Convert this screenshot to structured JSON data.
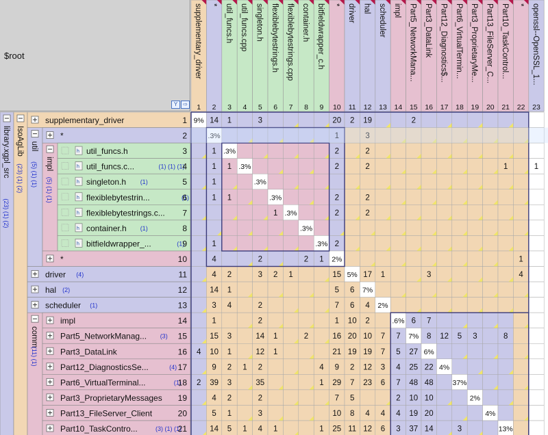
{
  "root_label": "$root",
  "icons": {
    "filter": "filter-icon",
    "export": "export-icon",
    "expand": "expand-plus-icon",
    "collapse": "collapse-minus-icon",
    "file": "header-file-icon"
  },
  "groups": [
    {
      "id": "g-library",
      "label": "library.xgpl_src",
      "badges": "(23) (1) (2)",
      "color": "#c9c9e9",
      "expanded": true
    },
    {
      "id": "g-isoaglib",
      "label": "IsoAgLib",
      "badges": "(23) (1) (2)",
      "color": "#f2d7b4",
      "expanded": true
    },
    {
      "id": "g-util",
      "label": "util",
      "badges": "(5) (1) (1)",
      "color": "#c9c9e9",
      "expanded": true
    },
    {
      "id": "g-impl",
      "label": "impl",
      "badges": "(5) (1) (1)",
      "color": "#e6c0d0",
      "expanded": true
    },
    {
      "id": "g-comm",
      "label": "comm",
      "badges": "(11) (1)",
      "color": "#e6c0d0",
      "expanded": true
    }
  ],
  "rows": [
    {
      "num": "1",
      "label": "supplementary_driver",
      "badges": "",
      "type": "package"
    },
    {
      "num": "2",
      "label": "*",
      "badges": "",
      "type": "package"
    },
    {
      "num": "3",
      "label": "util_funcs.h",
      "badges": "",
      "type": "file"
    },
    {
      "num": "4",
      "label": "util_funcs.c...",
      "badges": "(1) (1) (1)",
      "type": "file"
    },
    {
      "num": "5",
      "label": "singleton.h",
      "badges": "(1)",
      "type": "file"
    },
    {
      "num": "6",
      "label": "flexiblebytestrin...",
      "badges": "(1)",
      "type": "file"
    },
    {
      "num": "7",
      "label": "flexiblebytestrings.c...",
      "badges": "",
      "type": "file"
    },
    {
      "num": "8",
      "label": "container.h",
      "badges": "(1)",
      "type": "file"
    },
    {
      "num": "9",
      "label": "bitfieldwrapper_...",
      "badges": "(1)",
      "type": "file"
    },
    {
      "num": "10",
      "label": "*",
      "badges": "",
      "type": "package"
    },
    {
      "num": "11",
      "label": "driver",
      "badges": "(4)",
      "type": "package"
    },
    {
      "num": "12",
      "label": "hal",
      "badges": "(2)",
      "type": "package"
    },
    {
      "num": "13",
      "label": "scheduler",
      "badges": "(1)",
      "type": "package"
    },
    {
      "num": "14",
      "label": "impl",
      "badges": "",
      "type": "package"
    },
    {
      "num": "15",
      "label": "Part5_NetworkManag...",
      "badges": "(3)",
      "type": "package"
    },
    {
      "num": "16",
      "label": "Part3_DataLink",
      "badges": "",
      "type": "package"
    },
    {
      "num": "17",
      "label": "Part12_DiagnosticsSe...",
      "badges": "(4)",
      "type": "package"
    },
    {
      "num": "18",
      "label": "Part6_VirtualTerminal...",
      "badges": "(1)",
      "type": "package"
    },
    {
      "num": "19",
      "label": "Part3_ProprietaryMessages",
      "badges": "",
      "type": "package"
    },
    {
      "num": "20",
      "label": "Part13_FileServer_Client",
      "badges": "",
      "type": "package"
    },
    {
      "num": "21",
      "label": "Part10_TaskContro...",
      "badges": "(3) (1) (1)",
      "type": "package"
    }
  ],
  "columns": [
    {
      "num": "1",
      "label": "supplementary_driver"
    },
    {
      "num": "2",
      "label": "*"
    },
    {
      "num": "3",
      "label": "util_funcs.h"
    },
    {
      "num": "4",
      "label": "util_funcs.cpp"
    },
    {
      "num": "5",
      "label": "singleton.h"
    },
    {
      "num": "6",
      "label": "flexiblebytestrings.h"
    },
    {
      "num": "7",
      "label": "flexiblebytestrings.cpp"
    },
    {
      "num": "8",
      "label": "container.h"
    },
    {
      "num": "9",
      "label": "bitfieldwrapper_c.h"
    },
    {
      "num": "10",
      "label": "*"
    },
    {
      "num": "11",
      "label": "driver"
    },
    {
      "num": "12",
      "label": "hal"
    },
    {
      "num": "13",
      "label": "scheduler"
    },
    {
      "num": "14",
      "label": "impl"
    },
    {
      "num": "15",
      "label": "Part5_NetworkMana..."
    },
    {
      "num": "16",
      "label": "Part3_DataLink"
    },
    {
      "num": "17",
      "label": "Part12_Diagnostics$..."
    },
    {
      "num": "18",
      "label": "Part6_VirtualTermin..."
    },
    {
      "num": "19",
      "label": "Part3_ProprietaryMe..."
    },
    {
      "num": "20",
      "label": "Part13_FileServer_C..."
    },
    {
      "num": "21",
      "label": "Part10_TaskControl..."
    },
    {
      "num": "22",
      "label": "*"
    },
    {
      "num": "23",
      "label": "openssl--OpenSSL_1..."
    }
  ],
  "matrix": [
    [
      "9%",
      "14",
      "1",
      "",
      "3",
      "",
      "",
      "",
      "",
      "20",
      "2",
      "19",
      "",
      "",
      "2",
      "",
      "",
      "",
      "",
      "",
      "",
      "",
      ""
    ],
    [
      "",
      ".3%",
      "",
      "",
      "",
      "",
      "",
      "",
      "",
      "1",
      "",
      "3",
      "",
      "",
      "",
      "",
      "",
      "",
      "",
      "",
      "",
      "",
      ""
    ],
    [
      "",
      "1",
      ".3%",
      "",
      "",
      "",
      "",
      "",
      "",
      "2",
      "",
      "2",
      "",
      "",
      "",
      "",
      "",
      "",
      "",
      "",
      "",
      "",
      ""
    ],
    [
      "",
      "1",
      "1",
      ".3%",
      "",
      "",
      "",
      "",
      "",
      "2",
      "",
      "2",
      "",
      "",
      "",
      "",
      "",
      "",
      "",
      "",
      "1",
      "",
      "1"
    ],
    [
      "",
      "1",
      "",
      "",
      ".3%",
      "",
      "",
      "",
      "",
      "",
      "",
      "",
      "",
      "",
      "",
      "",
      "",
      "",
      "",
      "",
      "",
      "",
      ""
    ],
    [
      "",
      "1",
      "1",
      "",
      "",
      ".3%",
      "",
      "",
      "",
      "2",
      "",
      "2",
      "",
      "",
      "",
      "",
      "",
      "",
      "",
      "",
      "",
      "",
      ""
    ],
    [
      "",
      "",
      "",
      "",
      "",
      "1",
      ".3%",
      "",
      "",
      "2",
      "",
      "2",
      "",
      "",
      "",
      "",
      "",
      "",
      "",
      "",
      "",
      "",
      ""
    ],
    [
      "",
      "",
      "",
      "",
      "",
      "",
      "",
      ".3%",
      "",
      "",
      "",
      "",
      "",
      "",
      "",
      "",
      "",
      "",
      "",
      "",
      "",
      "",
      ""
    ],
    [
      "",
      "1",
      "",
      "",
      "",
      "",
      "",
      "",
      ".3%",
      "2",
      "",
      "",
      "",
      "",
      "",
      "",
      "",
      "",
      "",
      "",
      "",
      "",
      ""
    ],
    [
      "",
      "4",
      "",
      "",
      "2",
      "",
      "",
      "2",
      "1",
      "2%",
      "",
      "",
      "",
      "",
      "",
      "",
      "",
      "",
      "",
      "",
      "",
      "1",
      ""
    ],
    [
      "",
      "4",
      "2",
      "",
      "3",
      "2",
      "1",
      "",
      "",
      "15",
      "5%",
      "17",
      "1",
      "",
      "",
      "3",
      "",
      "",
      "",
      "",
      "",
      "4",
      ""
    ],
    [
      "",
      "14",
      "1",
      "",
      "",
      "",
      "",
      "",
      "",
      "5",
      "6",
      "7%",
      "",
      "",
      "",
      "",
      "",
      "",
      "",
      "",
      "",
      "",
      ""
    ],
    [
      "",
      "3",
      "4",
      "",
      "2",
      "",
      "",
      "",
      "",
      "7",
      "6",
      "4",
      "2%",
      "",
      "",
      "",
      "",
      "",
      "",
      "",
      "",
      "",
      ""
    ],
    [
      "",
      "1",
      "",
      "",
      "2",
      "",
      "",
      "",
      "",
      "1",
      "10",
      "2",
      "",
      ".6%",
      "6",
      "7",
      "",
      "",
      "",
      "",
      "",
      "",
      ""
    ],
    [
      "",
      "15",
      "3",
      "",
      "14",
      "1",
      "",
      "2",
      "",
      "16",
      "20",
      "10",
      "7",
      "7",
      "7%",
      "8",
      "12",
      "5",
      "3",
      "",
      "8",
      "",
      ""
    ],
    [
      "4",
      "10",
      "1",
      "",
      "12",
      "1",
      "",
      "",
      "",
      "21",
      "19",
      "19",
      "7",
      "5",
      "27",
      "6%",
      "",
      "",
      "",
      "",
      "",
      "",
      ""
    ],
    [
      "",
      "9",
      "2",
      "1",
      "2",
      "",
      "",
      "",
      "4",
      "9",
      "2",
      "12",
      "3",
      "4",
      "25",
      "22",
      "4%",
      "",
      "",
      "",
      "",
      "",
      ""
    ],
    [
      "2",
      "39",
      "3",
      "",
      "35",
      "",
      "",
      "",
      "1",
      "29",
      "7",
      "23",
      "6",
      "7",
      "48",
      "48",
      "",
      "37%",
      "",
      "",
      "",
      "",
      ""
    ],
    [
      "",
      "4",
      "2",
      "",
      "2",
      "",
      "",
      "",
      "",
      "7",
      "5",
      "",
      "",
      "2",
      "10",
      "10",
      "",
      "",
      "2%",
      "",
      "",
      "",
      ""
    ],
    [
      "",
      "5",
      "1",
      "",
      "3",
      "",
      "",
      "",
      "",
      "10",
      "8",
      "4",
      "4",
      "4",
      "19",
      "20",
      "",
      "",
      "",
      "4%",
      "",
      "",
      ""
    ],
    [
      "",
      "14",
      "5",
      "1",
      "4",
      "1",
      "",
      "",
      "1",
      "25",
      "11",
      "12",
      "6",
      "3",
      "37",
      "14",
      "",
      "3",
      "",
      "",
      "13%",
      "",
      ""
    ]
  ],
  "colors": {
    "orange": "#f2d7b4",
    "lavender": "#c9c9e9",
    "green": "#c6e8c6",
    "pink": "#e6c0d0",
    "diag": "#ffffff",
    "marker": "#b4174a",
    "yellow_marker": "#f1e56a",
    "row_highlight": "#cce0ff"
  }
}
